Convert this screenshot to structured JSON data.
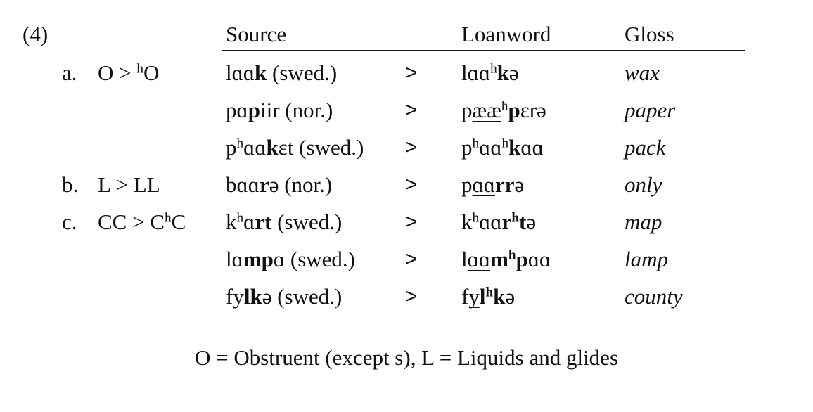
{
  "example_number": "(4)",
  "headers": {
    "source": "Source",
    "loanword": "Loanword",
    "gloss": "Gloss"
  },
  "arrow": ">",
  "rows": [
    {
      "label": "a.",
      "rule": "O > ʰO",
      "source": "lɑɑk (swed.)",
      "loanword": "lɑɑʰkə",
      "gloss": "wax"
    },
    {
      "label": "",
      "rule": "",
      "source": "pɑpiir (nor.)",
      "loanword": "pææʰperə",
      "gloss": "paper"
    },
    {
      "label": "",
      "rule": "",
      "source": "pʰɑɑkɛt (swed.)",
      "loanword": "pʰɑɑʰkɑɑ",
      "gloss": "pack"
    },
    {
      "label": "b.",
      "rule": "L > LL",
      "source": "bɑɑrə (nor.)",
      "loanword": "pɑɑrrə",
      "gloss": "only"
    },
    {
      "label": "c.",
      "rule": "CC > CʰC",
      "source": "kʰɑrt (swed.)",
      "loanword": "kʰɑɑrʰtə",
      "gloss": "map"
    },
    {
      "label": "",
      "rule": "",
      "source": "lɑmpɑ (swed.)",
      "loanword": "lɑɑmʰpɑɑ",
      "gloss": "lamp"
    },
    {
      "label": "",
      "rule": "",
      "source": "fylkə (swed.)",
      "loanword": "fylʰkə",
      "gloss": "county"
    }
  ],
  "footnote": "O = Obstruent (except s), L = Liquids and glides"
}
